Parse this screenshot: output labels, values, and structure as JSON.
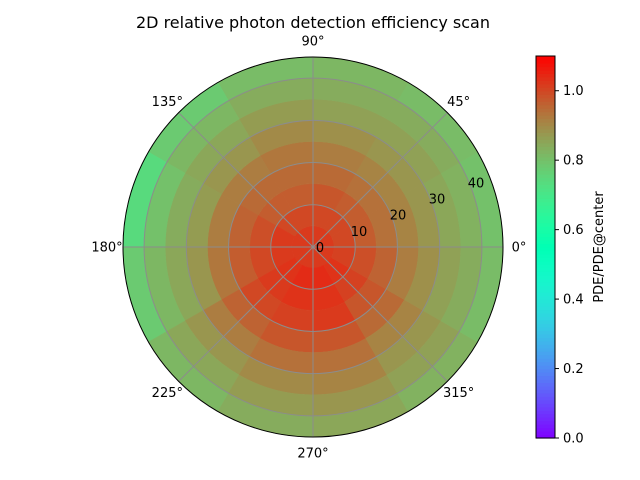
{
  "chart_data": {
    "type": "heatmap",
    "subtype": "polar",
    "title": "2D relative photon detection efficiency scan",
    "radial_ticks": [
      0,
      10,
      20,
      30,
      40
    ],
    "radial_range": [
      0,
      45
    ],
    "angle_ticks": [
      0,
      45,
      90,
      135,
      180,
      225,
      270,
      315
    ],
    "angle_tick_labels": [
      "0°",
      "45°",
      "90°",
      "135°",
      "180°",
      "225°",
      "270°",
      "315°"
    ],
    "angle_zero_direction": "east",
    "angle_direction": "counterclockwise",
    "grid": true,
    "colormap": "rainbow",
    "color_range": [
      0.0,
      1.1
    ],
    "colorbar": {
      "label": "PDE/PDE@center",
      "ticks": [
        0.0,
        0.2,
        0.4,
        0.6,
        0.8,
        1.0
      ],
      "tick_labels": [
        "0.0",
        "0.2",
        "0.4",
        "0.6",
        "0.8",
        "1.0"
      ],
      "placement": "right"
    },
    "radial_bin_edges": [
      0,
      5,
      10,
      15,
      20,
      25,
      30,
      35,
      40,
      45
    ],
    "angular_bin_edges": [
      0,
      30,
      60,
      90,
      120,
      150,
      180,
      210,
      240,
      270,
      300,
      330,
      360
    ],
    "values": [
      [
        1.02,
        1.02,
        1.02,
        1.02,
        1.02,
        1.02,
        1.02,
        1.02,
        1.02,
        1.02,
        1.02,
        1.02
      ],
      [
        1.0,
        1.0,
        1.0,
        1.0,
        1.0,
        1.02,
        1.02,
        1.03,
        1.04,
        1.04,
        1.03,
        1.01
      ],
      [
        0.97,
        0.97,
        0.98,
        0.97,
        0.97,
        0.99,
        1.0,
        1.02,
        1.03,
        1.03,
        1.01,
        0.99
      ],
      [
        0.94,
        0.94,
        0.95,
        0.95,
        0.95,
        0.96,
        0.97,
        1.0,
        1.01,
        1.02,
        0.98,
        0.96
      ],
      [
        0.91,
        0.91,
        0.92,
        0.93,
        0.92,
        0.92,
        0.93,
        0.96,
        0.98,
        0.98,
        0.95,
        0.92
      ],
      [
        0.88,
        0.88,
        0.89,
        0.9,
        0.88,
        0.87,
        0.88,
        0.92,
        0.94,
        0.94,
        0.91,
        0.89
      ],
      [
        0.85,
        0.86,
        0.86,
        0.87,
        0.85,
        0.84,
        0.85,
        0.88,
        0.9,
        0.91,
        0.88,
        0.86
      ],
      [
        0.83,
        0.84,
        0.84,
        0.84,
        0.82,
        0.8,
        0.82,
        0.85,
        0.87,
        0.88,
        0.86,
        0.84
      ],
      [
        0.8,
        0.81,
        0.82,
        0.81,
        0.78,
        0.74,
        0.78,
        0.82,
        0.84,
        0.85,
        0.83,
        0.81
      ]
    ]
  }
}
